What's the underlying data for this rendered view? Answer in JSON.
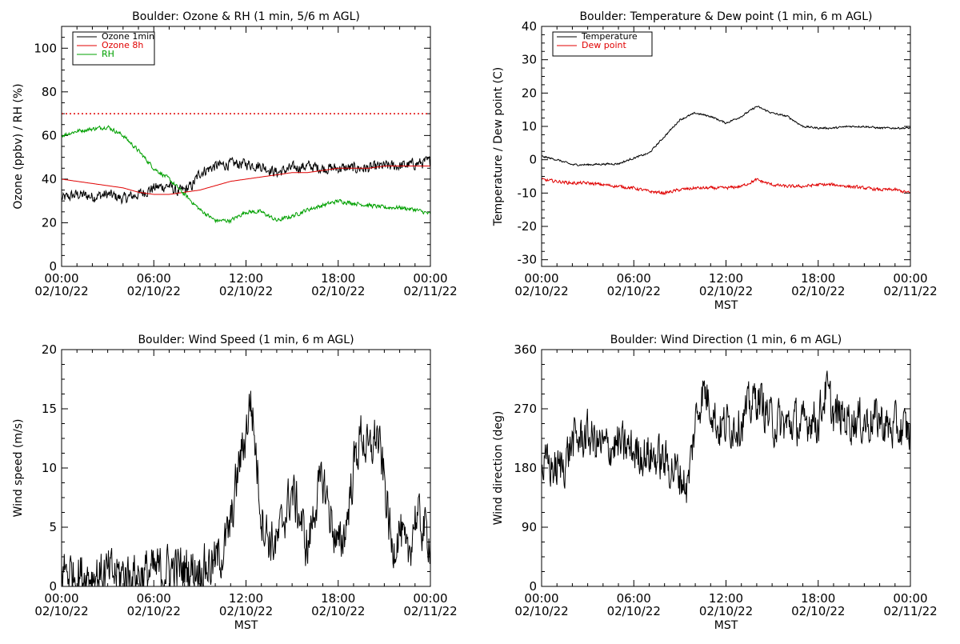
{
  "chart_data": [
    {
      "type": "line",
      "title": "Boulder: Ozone & RH (1 min, 5/6 m AGL)",
      "xlabel": "",
      "ylabel": "Ozone (ppbv) / RH (%)",
      "ylim": [
        0,
        110
      ],
      "xlim": [
        0,
        24
      ],
      "xticks": [
        {
          "top": "00:00",
          "bottom": "02/10/22"
        },
        {
          "top": "06:00",
          "bottom": "02/10/22"
        },
        {
          "top": "12:00",
          "bottom": "02/10/22"
        },
        {
          "top": "18:00",
          "bottom": "02/10/22"
        },
        {
          "top": "00:00",
          "bottom": "02/11/22"
        }
      ],
      "yticks": [
        0,
        20,
        40,
        60,
        80,
        100
      ],
      "legend": "top-left",
      "reference_line": {
        "y": 70,
        "color": "#e00000",
        "style": "dotted"
      },
      "series": [
        {
          "name": "Ozone 1min",
          "color": "#000000",
          "noise": 2.2,
          "x": [
            0,
            1,
            2,
            3,
            4,
            5,
            6,
            7,
            7.5,
            8,
            8.5,
            9,
            10,
            11,
            12,
            13,
            14,
            15,
            16,
            17,
            18,
            19,
            20,
            21,
            22,
            23,
            24
          ],
          "values": [
            31,
            33,
            32,
            33,
            31,
            33,
            36,
            37,
            34,
            35,
            37,
            43,
            46,
            47,
            47,
            46,
            43,
            45,
            46,
            45,
            45,
            45,
            45,
            46,
            46,
            47,
            48
          ]
        },
        {
          "name": "Ozone 8h",
          "color": "#e00000",
          "noise": 0,
          "x": [
            0,
            1,
            2,
            3,
            4,
            5,
            6,
            7,
            8,
            9,
            10,
            11,
            12,
            13,
            14,
            15,
            16,
            17,
            18,
            19,
            20,
            21,
            22,
            23,
            24
          ],
          "values": [
            40,
            39,
            38,
            37,
            36,
            34,
            33,
            33,
            34,
            35,
            37,
            39,
            40,
            41,
            42,
            43,
            43,
            44,
            45,
            45,
            45,
            46,
            46,
            46,
            46
          ]
        },
        {
          "name": "RH",
          "color": "#00a000",
          "noise": 0.8,
          "x": [
            0,
            1,
            2,
            3,
            4,
            5,
            6,
            7,
            8,
            9,
            10,
            11,
            12,
            13,
            14,
            15,
            16,
            17,
            18,
            19,
            20,
            21,
            22,
            23,
            24
          ],
          "values": [
            60,
            62,
            63,
            64,
            60,
            53,
            45,
            40,
            33,
            26,
            21,
            21,
            25,
            25,
            21,
            23,
            26,
            28,
            30,
            29,
            28,
            27,
            27,
            26,
            24
          ]
        }
      ]
    },
    {
      "type": "line",
      "title": "Boulder: Temperature & Dew point (1 min, 6 m AGL)",
      "xlabel": "MST",
      "ylabel": "Temperature / Dew point (C)",
      "ylim": [
        -32,
        40
      ],
      "xlim": [
        0,
        24
      ],
      "xticks": [
        {
          "top": "00:00",
          "bottom": "02/10/22"
        },
        {
          "top": "06:00",
          "bottom": "02/10/22"
        },
        {
          "top": "12:00",
          "bottom": "02/10/22"
        },
        {
          "top": "18:00",
          "bottom": "02/10/22"
        },
        {
          "top": "00:00",
          "bottom": "02/11/22"
        }
      ],
      "yticks": [
        -30,
        -20,
        -10,
        0,
        10,
        20,
        30,
        40
      ],
      "legend": "top-left",
      "series": [
        {
          "name": "Temperature",
          "color": "#000000",
          "noise": 0.25,
          "x": [
            0,
            1,
            2,
            3,
            4,
            5,
            6,
            7,
            8,
            9,
            10,
            11,
            12,
            13,
            14,
            15,
            16,
            17,
            18,
            19,
            20,
            21,
            22,
            23,
            24
          ],
          "values": [
            1,
            0,
            -1.5,
            -1.5,
            -1.3,
            -1.2,
            0.5,
            2,
            7,
            12,
            14,
            13,
            11,
            13,
            16,
            14,
            13,
            10,
            9.5,
            9.5,
            10,
            10,
            9.5,
            9.5,
            9.5
          ]
        },
        {
          "name": "Dew point",
          "color": "#e00000",
          "noise": 0.4,
          "x": [
            0,
            1,
            2,
            3,
            4,
            5,
            6,
            7,
            8,
            9,
            10,
            11,
            12,
            13,
            14,
            15,
            16,
            17,
            18,
            19,
            20,
            21,
            22,
            23,
            24
          ],
          "values": [
            -6,
            -6.5,
            -7,
            -7,
            -7.5,
            -8,
            -8.5,
            -9.5,
            -10,
            -9,
            -8.5,
            -8.5,
            -8.5,
            -8,
            -6,
            -7.5,
            -8,
            -8,
            -7.5,
            -7.5,
            -8,
            -8.5,
            -9,
            -9,
            -10
          ]
        }
      ]
    },
    {
      "type": "line",
      "title": "Boulder: Wind Speed (1 min, 6 m AGL)",
      "xlabel": "MST",
      "ylabel": "Wind speed (m/s)",
      "ylim": [
        0,
        20
      ],
      "xlim": [
        0,
        24
      ],
      "xticks": [
        {
          "top": "00:00",
          "bottom": "02/10/22"
        },
        {
          "top": "06:00",
          "bottom": "02/10/22"
        },
        {
          "top": "12:00",
          "bottom": "02/10/22"
        },
        {
          "top": "18:00",
          "bottom": "02/10/22"
        },
        {
          "top": "00:00",
          "bottom": "02/11/22"
        }
      ],
      "yticks": [
        0,
        5,
        10,
        15,
        20
      ],
      "series": [
        {
          "name": "",
          "color": "#000000",
          "noise": 1.8,
          "x": [
            0,
            1,
            2,
            3,
            4,
            5,
            6,
            7,
            8,
            9,
            10,
            10.5,
            11,
            11.5,
            12,
            12.3,
            12.6,
            13,
            13.5,
            14,
            14.5,
            15,
            15.5,
            16,
            16.5,
            17,
            17.5,
            18,
            18.5,
            19,
            19.5,
            20,
            20.5,
            21,
            21.5,
            22,
            22.5,
            23,
            23.5,
            24
          ],
          "values": [
            1.5,
            1,
            1,
            1,
            1,
            1,
            1.2,
            1.5,
            1.5,
            1.5,
            2,
            3,
            5,
            10,
            13,
            16,
            12,
            6,
            4,
            3.5,
            6,
            8,
            6,
            3,
            7,
            9,
            6,
            3,
            5,
            10,
            13,
            11,
            13,
            9,
            3,
            5,
            2,
            6,
            5,
            4
          ]
        }
      ]
    },
    {
      "type": "line",
      "title": "Boulder: Wind Direction (1 min, 6 m AGL)",
      "xlabel": "MST",
      "ylabel": "Wind direction (deg)",
      "ylim": [
        0,
        360
      ],
      "xlim": [
        0,
        24
      ],
      "xticks": [
        {
          "top": "00:00",
          "bottom": "02/10/22"
        },
        {
          "top": "06:00",
          "bottom": "02/10/22"
        },
        {
          "top": "12:00",
          "bottom": "02/10/22"
        },
        {
          "top": "18:00",
          "bottom": "02/10/22"
        },
        {
          "top": "00:00",
          "bottom": "02/11/22"
        }
      ],
      "yticks": [
        0,
        90,
        180,
        270,
        360
      ],
      "series": [
        {
          "name": "",
          "color": "#000000",
          "noise": 30,
          "x": [
            0,
            0.5,
            1,
            1.5,
            2,
            3,
            4,
            5,
            6,
            7,
            8,
            9,
            9.5,
            10,
            10.5,
            11,
            11.5,
            12,
            13,
            14,
            15,
            16,
            16.5,
            17,
            17.5,
            18,
            18.5,
            19,
            20,
            21,
            22,
            22.5,
            23,
            24
          ],
          "values": [
            180,
            185,
            175,
            190,
            220,
            230,
            210,
            215,
            205,
            200,
            190,
            170,
            150,
            250,
            300,
            280,
            240,
            245,
            250,
            290,
            250,
            245,
            250,
            240,
            260,
            250,
            300,
            260,
            255,
            250,
            255,
            240,
            240,
            235
          ]
        }
      ]
    }
  ]
}
